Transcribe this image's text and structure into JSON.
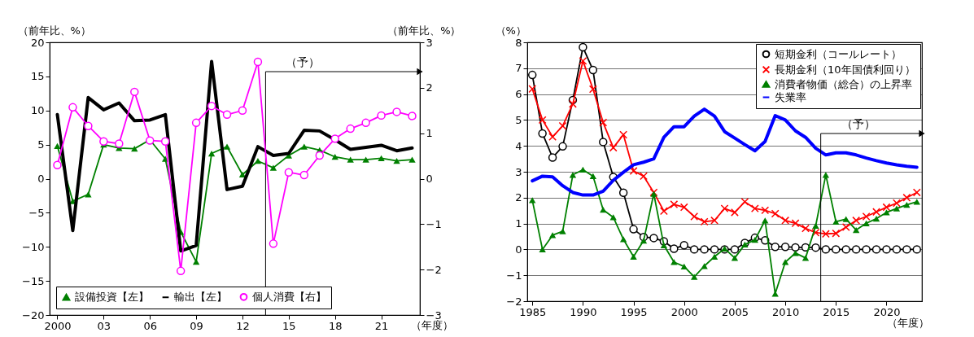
{
  "chart_data": [
    {
      "type": "line",
      "xlabel": "（年度）",
      "ylabel": "（前年比、%）",
      "y2label": "（前年比、%）",
      "x": [
        2000,
        2001,
        2002,
        2003,
        2004,
        2005,
        2006,
        2007,
        2008,
        2009,
        2010,
        2011,
        2012,
        2013,
        2014,
        2015,
        2016,
        2017,
        2018,
        2019,
        2020,
        2021,
        2022,
        2023
      ],
      "xlim": [
        1999.5,
        2023.5
      ],
      "xticks": [
        {
          "value": 2000,
          "label": "2000"
        },
        {
          "value": 2003,
          "label": "03"
        },
        {
          "value": 2006,
          "label": "06"
        },
        {
          "value": 2009,
          "label": "09"
        },
        {
          "value": 2012,
          "label": "12"
        },
        {
          "value": 2015,
          "label": "15"
        },
        {
          "value": 2018,
          "label": "18"
        },
        {
          "value": 2021,
          "label": "21"
        }
      ],
      "ylim": [
        -20,
        20
      ],
      "yticks": [
        -20,
        -15,
        -10,
        -5,
        0,
        5,
        10,
        15,
        20
      ],
      "y2lim": [
        -3,
        3
      ],
      "y2ticks": [
        -3,
        -2,
        -1,
        0,
        1,
        2,
        3
      ],
      "grid": false,
      "legend": "bottom",
      "series": [
        {
          "name": "設備投資【左】",
          "color": "#008000",
          "marker": "triangle",
          "values": [
            4.8,
            -3.3,
            -2.3,
            5.0,
            4.5,
            4.4,
            5.7,
            2.9,
            -7.8,
            -12.2,
            3.7,
            4.7,
            0.6,
            2.6,
            1.6,
            3.4,
            4.7,
            4.2,
            3.2,
            2.8,
            2.8,
            3.0,
            2.6,
            2.8
          ]
        },
        {
          "name": "輸出【左】",
          "color": "#000000",
          "marker": "none",
          "values": [
            9.4,
            -7.6,
            11.9,
            10.1,
            11.1,
            8.5,
            8.6,
            9.4,
            -10.6,
            -9.8,
            17.2,
            -1.6,
            -1.1,
            4.7,
            3.4,
            3.7,
            7.1,
            7.0,
            5.7,
            4.3,
            4.6,
            4.9,
            4.1,
            4.5
          ]
        },
        {
          "name": "個人消費【右】",
          "color": "#ff00ff",
          "marker": "circle",
          "axis": "y2",
          "values": [
            0.3,
            1.57,
            1.16,
            0.82,
            0.77,
            1.91,
            0.84,
            0.82,
            -2.03,
            1.23,
            1.6,
            1.41,
            1.5,
            2.57,
            -1.43,
            0.14,
            0.08,
            0.51,
            0.88,
            1.1,
            1.23,
            1.39,
            1.47,
            1.38
          ]
        }
      ],
      "ref_lines": [
        {
          "axis": "x",
          "value": 2013.5,
          "label": "（予）"
        }
      ]
    },
    {
      "type": "line",
      "xlabel": "（年度）",
      "ylabel": "（%）",
      "x": [
        1985,
        1986,
        1987,
        1988,
        1989,
        1990,
        1991,
        1992,
        1993,
        1994,
        1995,
        1996,
        1997,
        1998,
        1999,
        2000,
        2001,
        2002,
        2003,
        2004,
        2005,
        2006,
        2007,
        2008,
        2009,
        2010,
        2011,
        2012,
        2013,
        2014,
        2015,
        2016,
        2017,
        2018,
        2019,
        2020,
        2021,
        2022,
        2023
      ],
      "xlim": [
        1984.5,
        2023.5
      ],
      "xticks": [
        1985,
        1990,
        1995,
        2000,
        2005,
        2010,
        2015,
        2020
      ],
      "ylim": [
        -2,
        8
      ],
      "yticks": [
        -2,
        -1,
        0,
        1,
        2,
        3,
        4,
        5,
        6,
        7,
        8
      ],
      "grid": "y",
      "legend": "top",
      "series": [
        {
          "name": "短期金利（コールレート）",
          "color": "#000000",
          "marker": "circle",
          "values": [
            6.74,
            4.48,
            3.55,
            3.98,
            5.77,
            7.81,
            6.93,
            4.15,
            2.8,
            2.19,
            0.78,
            0.48,
            0.44,
            0.31,
            0.03,
            0.16,
            0.0,
            0.0,
            0.0,
            0.0,
            0.0,
            0.25,
            0.45,
            0.35,
            0.1,
            0.1,
            0.08,
            0.08,
            0.07,
            0.0,
            0.0,
            0.0,
            0.0,
            0.0,
            0.0,
            0.0,
            0.0,
            0.0,
            0.0
          ]
        },
        {
          "name": "長期金利（10年国債利回り）",
          "color": "#ff0000",
          "marker": "cross",
          "values": [
            6.2,
            5.0,
            4.35,
            4.77,
            5.62,
            7.28,
            6.19,
            4.9,
            3.93,
            4.43,
            3.03,
            2.83,
            2.2,
            1.48,
            1.74,
            1.63,
            1.27,
            1.07,
            1.12,
            1.58,
            1.43,
            1.84,
            1.58,
            1.51,
            1.38,
            1.12,
            1.01,
            0.81,
            0.65,
            0.6,
            0.62,
            0.86,
            1.12,
            1.27,
            1.45,
            1.63,
            1.79,
            2.0,
            2.2
          ]
        },
        {
          "name": "消費者物価（総合）の上昇率",
          "color": "#008000",
          "marker": "triangle",
          "values": [
            1.9,
            0.0,
            0.55,
            0.7,
            2.88,
            3.08,
            2.83,
            1.53,
            1.24,
            0.39,
            -0.28,
            0.34,
            2.15,
            0.16,
            -0.49,
            -0.66,
            -1.06,
            -0.64,
            -0.28,
            0.03,
            -0.33,
            0.19,
            0.37,
            1.12,
            -1.71,
            -0.49,
            -0.14,
            -0.33,
            0.91,
            2.88,
            1.07,
            1.17,
            0.75,
            1.01,
            1.19,
            1.43,
            1.58,
            1.72,
            1.84
          ]
        },
        {
          "name": "失業率",
          "color": "#0000ff",
          "marker": "none",
          "values": [
            2.65,
            2.83,
            2.8,
            2.46,
            2.2,
            2.1,
            2.1,
            2.25,
            2.67,
            2.98,
            3.27,
            3.37,
            3.5,
            4.33,
            4.74,
            4.74,
            5.15,
            5.42,
            5.15,
            4.55,
            4.3,
            4.05,
            3.81,
            4.17,
            5.17,
            5.0,
            4.58,
            4.33,
            3.91,
            3.65,
            3.73,
            3.73,
            3.65,
            3.53,
            3.43,
            3.34,
            3.27,
            3.21,
            3.17
          ]
        }
      ],
      "ref_lines": [
        {
          "axis": "x",
          "value": 2013.5,
          "label": "（予）"
        }
      ]
    }
  ]
}
